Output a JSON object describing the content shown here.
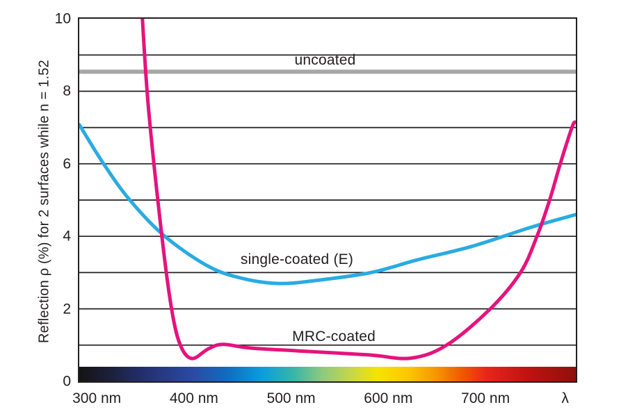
{
  "chart_data": {
    "type": "line",
    "title": "",
    "ylabel": "Reflection ρ (%) for 2 surfaces while n = 1.52",
    "xlabel": "λ",
    "x_unit": "nm",
    "ylim": [
      0,
      10
    ],
    "xlim_nm": [
      282,
      793
    ],
    "grid": "horizontal gridlines every 1%",
    "gridlines_y": [
      1,
      2,
      3,
      4,
      5,
      6,
      7,
      8,
      9
    ],
    "y_ticks": [
      {
        "value": 10,
        "label": "10"
      },
      {
        "value": 8,
        "label": "8"
      },
      {
        "value": 6,
        "label": "6"
      },
      {
        "value": 4,
        "label": "4"
      },
      {
        "value": 2,
        "label": "2"
      },
      {
        "value": 0,
        "label": "0"
      }
    ],
    "x_ticks": [
      {
        "nm": 300,
        "label": "300 nm"
      },
      {
        "nm": 400,
        "label": "400 nm"
      },
      {
        "nm": 500,
        "label": "500 nm"
      },
      {
        "nm": 600,
        "label": "600 nm"
      },
      {
        "nm": 700,
        "label": "700 nm"
      },
      {
        "nm": 782,
        "label": "λ"
      }
    ],
    "series": [
      {
        "name": "uncoated",
        "label": "uncoated",
        "color": "#a7a7a7",
        "stroke_width": 6,
        "label_anchor": {
          "nm": 535,
          "value": 8.85
        },
        "points": [
          [
            282,
            8.54
          ],
          [
            793,
            8.54
          ]
        ]
      },
      {
        "name": "single-coated",
        "label": "single-coated (E)",
        "color": "#29abe2",
        "stroke_width": 5,
        "label_anchor": {
          "nm": 506,
          "value": 3.35
        },
        "points": [
          [
            282,
            7.08
          ],
          [
            307,
            6.0
          ],
          [
            334,
            5.0
          ],
          [
            370,
            4.0
          ],
          [
            415,
            3.17
          ],
          [
            450,
            2.84
          ],
          [
            487,
            2.7
          ],
          [
            525,
            2.78
          ],
          [
            582,
            3.0
          ],
          [
            630,
            3.35
          ],
          [
            687,
            3.73
          ],
          [
            747,
            4.25
          ],
          [
            793,
            4.6
          ]
        ]
      },
      {
        "name": "mrc-coated",
        "label": "MRC-coated",
        "color": "#e5137d",
        "stroke_width": 5,
        "label_anchor": {
          "nm": 544,
          "value": 1.22
        },
        "points": [
          [
            346,
            10.45
          ],
          [
            353,
            7.6
          ],
          [
            367,
            4.0
          ],
          [
            377,
            2.0
          ],
          [
            386,
            1.0
          ],
          [
            398,
            0.63
          ],
          [
            415,
            0.9
          ],
          [
            430,
            1.02
          ],
          [
            458,
            0.92
          ],
          [
            508,
            0.84
          ],
          [
            580,
            0.73
          ],
          [
            623,
            0.64
          ],
          [
            660,
            1.0
          ],
          [
            705,
            2.0
          ],
          [
            736,
            3.0
          ],
          [
            753,
            4.0
          ],
          [
            766,
            5.0
          ],
          [
            777,
            6.0
          ],
          [
            789,
            7.0
          ],
          [
            792,
            7.15
          ]
        ]
      }
    ],
    "spectrum_bar": {
      "description": "visible-light wavelength spectrum strip along x-axis",
      "stops": [
        {
          "pos": 0.0,
          "color": "#141414"
        },
        {
          "pos": 0.07,
          "color": "#1d2140"
        },
        {
          "pos": 0.14,
          "color": "#243275"
        },
        {
          "pos": 0.23,
          "color": "#2b4aa5"
        },
        {
          "pos": 0.3,
          "color": "#0e6ec0"
        },
        {
          "pos": 0.37,
          "color": "#0c9ede"
        },
        {
          "pos": 0.43,
          "color": "#36b5a8"
        },
        {
          "pos": 0.49,
          "color": "#8fc97d"
        },
        {
          "pos": 0.55,
          "color": "#c9d748"
        },
        {
          "pos": 0.6,
          "color": "#f4e400"
        },
        {
          "pos": 0.66,
          "color": "#fdc802"
        },
        {
          "pos": 0.72,
          "color": "#f59500"
        },
        {
          "pos": 0.77,
          "color": "#ef5a00"
        },
        {
          "pos": 0.82,
          "color": "#e9251a"
        },
        {
          "pos": 0.9,
          "color": "#c01312"
        },
        {
          "pos": 1.0,
          "color": "#8e100c"
        }
      ]
    },
    "colors": {
      "text": "#231f20",
      "grid": "#231f20",
      "uncoated": "#a7a7a7",
      "single_coated": "#29abe2",
      "mrc_coated": "#e5137d"
    }
  }
}
